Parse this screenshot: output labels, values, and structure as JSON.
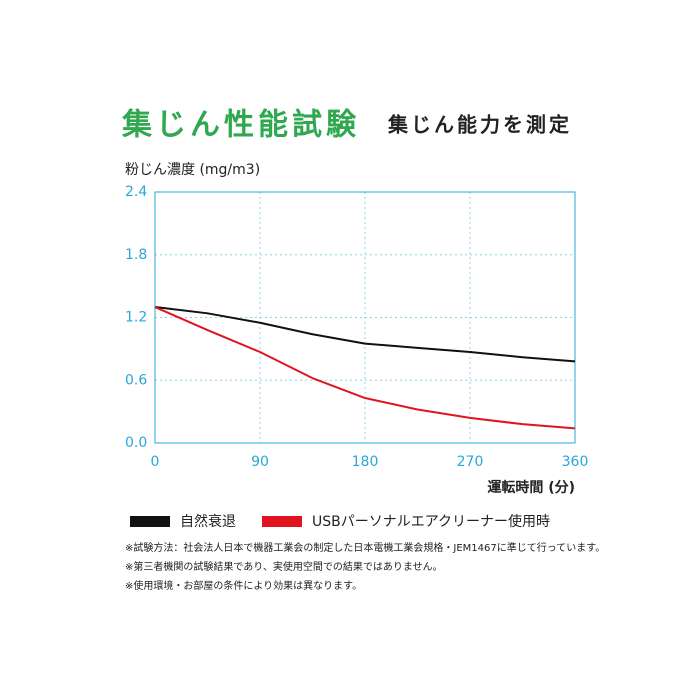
{
  "chart_data": {
    "type": "line",
    "title": "集じん性能試験",
    "subtitle": "集じん能力を測定",
    "y_label": "粉じん濃度 (mg/m3)",
    "x_label": "運転時間 (分)",
    "x": [
      0,
      45,
      90,
      135,
      180,
      225,
      270,
      315,
      360
    ],
    "series": [
      {
        "name": "自然衰退",
        "color": "#111111",
        "values": [
          1.3,
          1.24,
          1.15,
          1.04,
          0.95,
          0.91,
          0.87,
          0.82,
          0.78
        ]
      },
      {
        "name": "USBパーソナルエアクリーナー使用時",
        "color": "#e0141e",
        "values": [
          1.3,
          1.08,
          0.87,
          0.62,
          0.43,
          0.32,
          0.24,
          0.18,
          0.14
        ]
      }
    ],
    "xlim": [
      0,
      360
    ],
    "ylim": [
      0,
      2.4
    ],
    "xticks": [
      0,
      90,
      180,
      270,
      360
    ],
    "yticks": [
      {
        "value": 0,
        "label": "0.0"
      },
      0.6,
      1.2,
      1.8,
      2.4
    ],
    "grid": true,
    "notes": [
      "※試験方法：社会法人日本で機器工業会の制定した日本電機工業会規格・JEM1467に準じて行っています。",
      "※第三者機関の試験結果であり、実使用空間での結果ではありません。",
      "※使用環境・お部屋の条件により効果は異なります。"
    ]
  }
}
